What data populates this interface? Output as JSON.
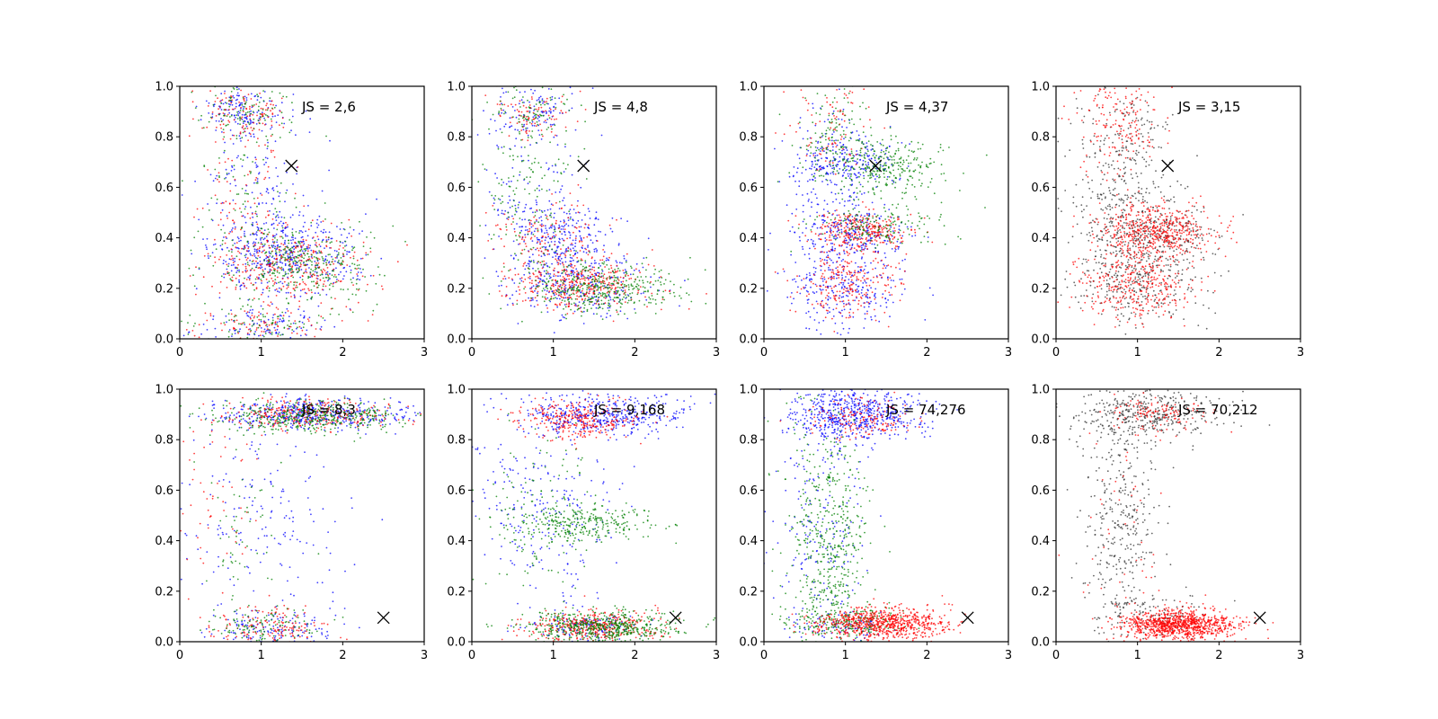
{
  "chart_data": [
    {
      "type": "scatter",
      "panel_index": 0,
      "annotation": "JS = 2,6",
      "marker": {
        "x": 1.37,
        "y": 0.685
      },
      "xlim": [
        0,
        3
      ],
      "ylim": [
        0,
        1
      ],
      "xticks": [
        "0",
        "1",
        "2",
        "3"
      ],
      "yticks": [
        "0.0",
        "0.2",
        "0.4",
        "0.6",
        "0.8",
        "1.0"
      ],
      "series": [
        {
          "color": "#0000ff",
          "clusters": [
            {
              "cx": 1.3,
              "cy": 0.33,
              "sx": 0.45,
              "sy": 0.08,
              "n": 450
            },
            {
              "cx": 0.75,
              "cy": 0.9,
              "sx": 0.25,
              "sy": 0.05,
              "n": 130
            },
            {
              "cx": 0.9,
              "cy": 0.6,
              "sx": 0.3,
              "sy": 0.2,
              "n": 160
            },
            {
              "cx": 1.1,
              "cy": 0.05,
              "sx": 0.4,
              "sy": 0.04,
              "n": 110
            }
          ]
        },
        {
          "color": "#ff0000",
          "clusters": [
            {
              "cx": 1.4,
              "cy": 0.3,
              "sx": 0.45,
              "sy": 0.08,
              "n": 330
            },
            {
              "cx": 0.75,
              "cy": 0.9,
              "sx": 0.25,
              "sy": 0.05,
              "n": 110
            },
            {
              "cx": 0.8,
              "cy": 0.55,
              "sx": 0.3,
              "sy": 0.2,
              "n": 110
            },
            {
              "cx": 1.0,
              "cy": 0.05,
              "sx": 0.4,
              "sy": 0.04,
              "n": 90
            }
          ]
        },
        {
          "color": "#008000",
          "clusters": [
            {
              "cx": 1.5,
              "cy": 0.3,
              "sx": 0.45,
              "sy": 0.08,
              "n": 350
            },
            {
              "cx": 0.75,
              "cy": 0.9,
              "sx": 0.25,
              "sy": 0.05,
              "n": 90
            },
            {
              "cx": 0.8,
              "cy": 0.6,
              "sx": 0.3,
              "sy": 0.2,
              "n": 90
            },
            {
              "cx": 1.0,
              "cy": 0.05,
              "sx": 0.4,
              "sy": 0.04,
              "n": 80
            }
          ]
        }
      ]
    },
    {
      "type": "scatter",
      "panel_index": 1,
      "annotation": "JS = 4,8",
      "marker": {
        "x": 1.37,
        "y": 0.685
      },
      "xlim": [
        0,
        3
      ],
      "ylim": [
        0,
        1
      ],
      "xticks": [
        "0",
        "1",
        "2",
        "3"
      ],
      "yticks": [
        "0.0",
        "0.2",
        "0.4",
        "0.6",
        "0.8",
        "1.0"
      ],
      "series": [
        {
          "color": "#0000ff",
          "clusters": [
            {
              "cx": 1.1,
              "cy": 0.4,
              "sx": 0.35,
              "sy": 0.07,
              "n": 250
            },
            {
              "cx": 1.3,
              "cy": 0.21,
              "sx": 0.45,
              "sy": 0.06,
              "n": 280
            },
            {
              "cx": 0.75,
              "cy": 0.9,
              "sx": 0.25,
              "sy": 0.05,
              "n": 110
            },
            {
              "cx": 0.7,
              "cy": 0.6,
              "sx": 0.3,
              "sy": 0.2,
              "n": 110
            }
          ]
        },
        {
          "color": "#ff0000",
          "clusters": [
            {
              "cx": 1.3,
              "cy": 0.21,
              "sx": 0.4,
              "sy": 0.05,
              "n": 380
            },
            {
              "cx": 1.0,
              "cy": 0.4,
              "sx": 0.35,
              "sy": 0.07,
              "n": 140
            },
            {
              "cx": 0.75,
              "cy": 0.9,
              "sx": 0.25,
              "sy": 0.05,
              "n": 90
            }
          ]
        },
        {
          "color": "#008000",
          "clusters": [
            {
              "cx": 1.6,
              "cy": 0.2,
              "sx": 0.45,
              "sy": 0.05,
              "n": 400
            },
            {
              "cx": 0.7,
              "cy": 0.55,
              "sx": 0.3,
              "sy": 0.2,
              "n": 160
            },
            {
              "cx": 0.75,
              "cy": 0.9,
              "sx": 0.25,
              "sy": 0.05,
              "n": 80
            }
          ]
        }
      ]
    },
    {
      "type": "scatter",
      "panel_index": 2,
      "annotation": "JS = 4,37",
      "marker": {
        "x": 1.37,
        "y": 0.685
      },
      "xlim": [
        0,
        3
      ],
      "ylim": [
        0,
        1
      ],
      "xticks": [
        "0",
        "1",
        "2",
        "3"
      ],
      "yticks": [
        "0.0",
        "0.2",
        "0.4",
        "0.6",
        "0.8",
        "1.0"
      ],
      "series": [
        {
          "color": "#0000ff",
          "clusters": [
            {
              "cx": 1.0,
              "cy": 0.7,
              "sx": 0.35,
              "sy": 0.05,
              "n": 220
            },
            {
              "cx": 1.1,
              "cy": 0.42,
              "sx": 0.35,
              "sy": 0.05,
              "n": 220
            },
            {
              "cx": 1.0,
              "cy": 0.2,
              "sx": 0.35,
              "sy": 0.07,
              "n": 230
            },
            {
              "cx": 0.8,
              "cy": 0.5,
              "sx": 0.25,
              "sy": 0.28,
              "n": 200
            }
          ]
        },
        {
          "color": "#ff0000",
          "clusters": [
            {
              "cx": 1.2,
              "cy": 0.43,
              "sx": 0.3,
              "sy": 0.04,
              "n": 300
            },
            {
              "cx": 1.0,
              "cy": 0.22,
              "sx": 0.3,
              "sy": 0.07,
              "n": 230
            },
            {
              "cx": 0.8,
              "cy": 0.85,
              "sx": 0.25,
              "sy": 0.1,
              "n": 90
            }
          ]
        },
        {
          "color": "#008000",
          "clusters": [
            {
              "cx": 1.5,
              "cy": 0.68,
              "sx": 0.4,
              "sy": 0.06,
              "n": 300
            },
            {
              "cx": 1.4,
              "cy": 0.45,
              "sx": 0.4,
              "sy": 0.04,
              "n": 150
            },
            {
              "cx": 0.8,
              "cy": 0.8,
              "sx": 0.25,
              "sy": 0.1,
              "n": 120
            }
          ]
        }
      ]
    },
    {
      "type": "scatter",
      "panel_index": 3,
      "annotation": "JS = 3,15",
      "marker": {
        "x": 1.37,
        "y": 0.685
      },
      "xlim": [
        0,
        3
      ],
      "ylim": [
        0,
        1
      ],
      "xticks": [
        "0",
        "1",
        "2",
        "3"
      ],
      "yticks": [
        "0.0",
        "0.2",
        "0.4",
        "0.6",
        "0.8",
        "1.0"
      ],
      "series": [
        {
          "color": "#333333",
          "clusters": [
            {
              "cx": 1.1,
              "cy": 0.42,
              "sx": 0.4,
              "sy": 0.06,
              "n": 300
            },
            {
              "cx": 1.0,
              "cy": 0.22,
              "sx": 0.4,
              "sy": 0.08,
              "n": 300
            },
            {
              "cx": 0.8,
              "cy": 0.65,
              "sx": 0.3,
              "sy": 0.2,
              "n": 350
            }
          ]
        },
        {
          "color": "#ff0000",
          "clusters": [
            {
              "cx": 1.2,
              "cy": 0.43,
              "sx": 0.35,
              "sy": 0.05,
              "n": 500
            },
            {
              "cx": 1.0,
              "cy": 0.22,
              "sx": 0.35,
              "sy": 0.07,
              "n": 350
            },
            {
              "cx": 0.75,
              "cy": 0.85,
              "sx": 0.25,
              "sy": 0.1,
              "n": 180
            }
          ]
        }
      ]
    },
    {
      "type": "scatter",
      "panel_index": 4,
      "annotation": "JS = 8,3",
      "marker": {
        "x": 2.5,
        "y": 0.095
      },
      "xlim": [
        0,
        3
      ],
      "ylim": [
        0,
        1
      ],
      "xticks": [
        "0",
        "1",
        "2",
        "3"
      ],
      "yticks": [
        "0.0",
        "0.2",
        "0.4",
        "0.6",
        "0.8",
        "1.0"
      ],
      "series": [
        {
          "color": "#0000ff",
          "clusters": [
            {
              "cx": 1.6,
              "cy": 0.9,
              "sx": 0.6,
              "sy": 0.03,
              "n": 450
            },
            {
              "cx": 1.0,
              "cy": 0.5,
              "sx": 0.6,
              "sy": 0.2,
              "n": 180
            },
            {
              "cx": 1.1,
              "cy": 0.05,
              "sx": 0.35,
              "sy": 0.04,
              "n": 150
            }
          ]
        },
        {
          "color": "#ff0000",
          "clusters": [
            {
              "cx": 1.5,
              "cy": 0.9,
              "sx": 0.55,
              "sy": 0.03,
              "n": 300
            },
            {
              "cx": 1.1,
              "cy": 0.06,
              "sx": 0.35,
              "sy": 0.04,
              "n": 150
            },
            {
              "cx": 0.5,
              "cy": 0.5,
              "sx": 0.3,
              "sy": 0.2,
              "n": 60
            }
          ]
        },
        {
          "color": "#008000",
          "clusters": [
            {
              "cx": 1.6,
              "cy": 0.89,
              "sx": 0.55,
              "sy": 0.03,
              "n": 420
            },
            {
              "cx": 1.0,
              "cy": 0.06,
              "sx": 0.35,
              "sy": 0.04,
              "n": 120
            },
            {
              "cx": 0.8,
              "cy": 0.5,
              "sx": 0.3,
              "sy": 0.2,
              "n": 60
            }
          ]
        }
      ]
    },
    {
      "type": "scatter",
      "panel_index": 5,
      "annotation": "JS = 9,168",
      "marker": {
        "x": 2.5,
        "y": 0.095
      },
      "xlim": [
        0,
        3
      ],
      "ylim": [
        0,
        1
      ],
      "xticks": [
        "0",
        "1",
        "2",
        "3"
      ],
      "yticks": [
        "0.0",
        "0.2",
        "0.4",
        "0.6",
        "0.8",
        "1.0"
      ],
      "series": [
        {
          "color": "#0000ff",
          "clusters": [
            {
              "cx": 1.6,
              "cy": 0.9,
              "sx": 0.5,
              "sy": 0.04,
              "n": 450
            },
            {
              "cx": 0.9,
              "cy": 0.55,
              "sx": 0.45,
              "sy": 0.2,
              "n": 250
            },
            {
              "cx": 1.4,
              "cy": 0.06,
              "sx": 0.35,
              "sy": 0.03,
              "n": 120
            }
          ]
        },
        {
          "color": "#ff0000",
          "clusters": [
            {
              "cx": 1.3,
              "cy": 0.88,
              "sx": 0.35,
              "sy": 0.04,
              "n": 300
            },
            {
              "cx": 1.5,
              "cy": 0.06,
              "sx": 0.4,
              "sy": 0.03,
              "n": 400
            }
          ]
        },
        {
          "color": "#008000",
          "clusters": [
            {
              "cx": 1.6,
              "cy": 0.06,
              "sx": 0.45,
              "sy": 0.03,
              "n": 550
            },
            {
              "cx": 1.4,
              "cy": 0.47,
              "sx": 0.45,
              "sy": 0.04,
              "n": 300
            },
            {
              "cx": 0.8,
              "cy": 0.5,
              "sx": 0.35,
              "sy": 0.2,
              "n": 120
            }
          ]
        }
      ]
    },
    {
      "type": "scatter",
      "panel_index": 6,
      "annotation": "JS = 74,276",
      "marker": {
        "x": 2.5,
        "y": 0.095
      },
      "xlim": [
        0,
        3
      ],
      "ylim": [
        0,
        1
      ],
      "xticks": [
        "0",
        "1",
        "2",
        "3"
      ],
      "yticks": [
        "0.0",
        "0.2",
        "0.4",
        "0.6",
        "0.8",
        "1.0"
      ],
      "series": [
        {
          "color": "#0000ff",
          "clusters": [
            {
              "cx": 1.1,
              "cy": 0.9,
              "sx": 0.45,
              "sy": 0.05,
              "n": 600
            },
            {
              "cx": 0.7,
              "cy": 0.5,
              "sx": 0.3,
              "sy": 0.25,
              "n": 220
            },
            {
              "cx": 1.0,
              "cy": 0.06,
              "sx": 0.35,
              "sy": 0.03,
              "n": 80
            }
          ]
        },
        {
          "color": "#008000",
          "clusters": [
            {
              "cx": 0.8,
              "cy": 0.4,
              "sx": 0.25,
              "sy": 0.25,
              "n": 550
            },
            {
              "cx": 1.0,
              "cy": 0.08,
              "sx": 0.35,
              "sy": 0.03,
              "n": 200
            }
          ]
        },
        {
          "color": "#ff0000",
          "clusters": [
            {
              "cx": 1.5,
              "cy": 0.07,
              "sx": 0.4,
              "sy": 0.03,
              "n": 750
            },
            {
              "cx": 1.2,
              "cy": 0.88,
              "sx": 0.3,
              "sy": 0.04,
              "n": 150
            }
          ]
        }
      ]
    },
    {
      "type": "scatter",
      "panel_index": 7,
      "annotation": "JS = 70,212",
      "marker": {
        "x": 2.5,
        "y": 0.095
      },
      "xlim": [
        0,
        3
      ],
      "ylim": [
        0,
        1
      ],
      "xticks": [
        "0",
        "1",
        "2",
        "3"
      ],
      "yticks": [
        "0.0",
        "0.2",
        "0.4",
        "0.6",
        "0.8",
        "1.0"
      ],
      "series": [
        {
          "color": "#333333",
          "clusters": [
            {
              "cx": 1.1,
              "cy": 0.9,
              "sx": 0.45,
              "sy": 0.05,
              "n": 400
            },
            {
              "cx": 0.8,
              "cy": 0.5,
              "sx": 0.25,
              "sy": 0.25,
              "n": 350
            },
            {
              "cx": 1.1,
              "cy": 0.12,
              "sx": 0.35,
              "sy": 0.05,
              "n": 120
            }
          ]
        },
        {
          "color": "#ff0000",
          "clusters": [
            {
              "cx": 1.5,
              "cy": 0.07,
              "sx": 0.35,
              "sy": 0.03,
              "n": 1000
            },
            {
              "cx": 1.3,
              "cy": 0.9,
              "sx": 0.3,
              "sy": 0.04,
              "n": 120
            },
            {
              "cx": 0.8,
              "cy": 0.5,
              "sx": 0.25,
              "sy": 0.25,
              "n": 60
            }
          ]
        }
      ]
    }
  ]
}
